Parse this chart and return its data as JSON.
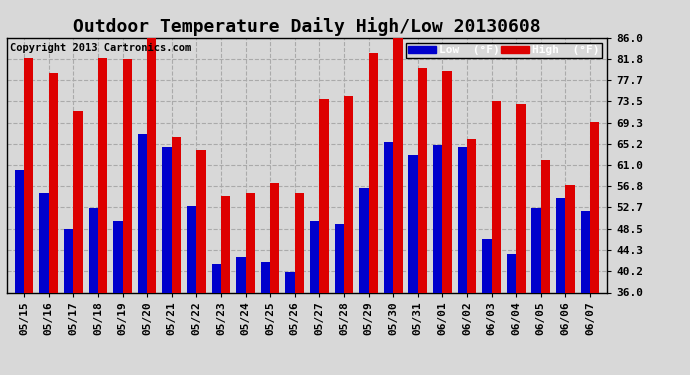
{
  "title": "Outdoor Temperature Daily High/Low 20130608",
  "copyright": "Copyright 2013 Cartronics.com",
  "ylabel_right_ticks": [
    36.0,
    40.2,
    44.3,
    48.5,
    52.7,
    56.8,
    61.0,
    65.2,
    69.3,
    73.5,
    77.7,
    81.8,
    86.0
  ],
  "dates": [
    "05/15",
    "05/16",
    "05/17",
    "05/18",
    "05/19",
    "05/20",
    "05/21",
    "05/22",
    "05/23",
    "05/24",
    "05/25",
    "05/26",
    "05/27",
    "05/28",
    "05/29",
    "05/30",
    "05/31",
    "06/01",
    "06/02",
    "06/03",
    "06/04",
    "06/05",
    "06/06",
    "06/07"
  ],
  "lows": [
    60.0,
    55.5,
    48.5,
    52.5,
    50.0,
    67.0,
    64.5,
    53.0,
    41.5,
    43.0,
    42.0,
    40.0,
    50.0,
    49.5,
    56.5,
    65.5,
    63.0,
    65.0,
    64.5,
    46.5,
    43.5,
    52.5,
    54.5,
    52.0
  ],
  "highs": [
    82.0,
    79.0,
    71.5,
    82.0,
    81.8,
    86.5,
    66.5,
    64.0,
    55.0,
    55.5,
    57.5,
    55.5,
    74.0,
    74.5,
    83.0,
    86.5,
    80.0,
    79.5,
    66.0,
    73.5,
    73.0,
    62.0,
    57.0,
    69.5
  ],
  "low_color": "#0000cc",
  "high_color": "#dd0000",
  "bg_color": "#d8d8d8",
  "plot_bg_color": "#d8d8d8",
  "grid_color": "#aaaaaa",
  "bar_width": 0.38,
  "ylim": [
    36.0,
    86.0
  ],
  "title_fontsize": 13,
  "copyright_fontsize": 7.5,
  "tick_fontsize": 8,
  "legend_label_low": "Low  (°F)",
  "legend_label_high": "High  (°F)"
}
